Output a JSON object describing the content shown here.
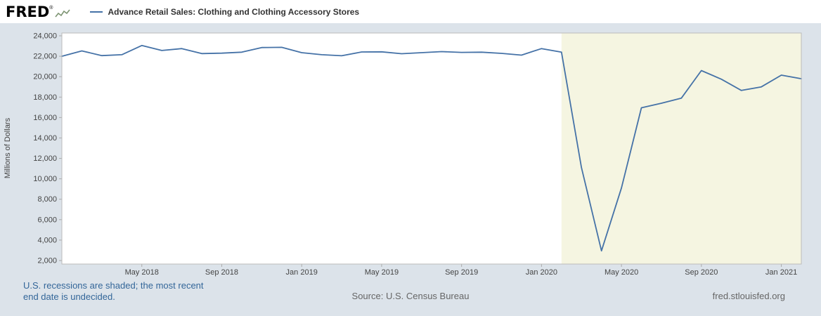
{
  "header": {
    "logo_text": "FRED",
    "logo_registered": "®",
    "legend_label": "Advance Retail Sales: Clothing and Clothing Accessory Stores"
  },
  "footer": {
    "recession_note_line1": "U.S. recessions are shaded; the most recent",
    "recession_note_line2": "end date is undecided.",
    "source": "Source: U.S. Census Bureau",
    "site": "fred.stlouisfed.org"
  },
  "chart_data": {
    "type": "line",
    "title": "Advance Retail Sales: Clothing and Clothing Accessory Stores",
    "xlabel": "",
    "ylabel": "Millions of Dollars",
    "ylim": [
      2000,
      24000
    ],
    "y_ticks": [
      2000,
      4000,
      6000,
      8000,
      10000,
      12000,
      14000,
      16000,
      18000,
      20000,
      22000,
      24000
    ],
    "grid": false,
    "legend_position": "top-left-header",
    "line_color": "#4572a7",
    "recession_color": "#f5f5e1",
    "plot_background": "#ffffff",
    "page_background": "#dce3ea",
    "x": [
      "2018-01",
      "2018-02",
      "2018-03",
      "2018-04",
      "2018-05",
      "2018-06",
      "2018-07",
      "2018-08",
      "2018-09",
      "2018-10",
      "2018-11",
      "2018-12",
      "2019-01",
      "2019-02",
      "2019-03",
      "2019-04",
      "2019-05",
      "2019-06",
      "2019-07",
      "2019-08",
      "2019-09",
      "2019-10",
      "2019-11",
      "2019-12",
      "2020-01",
      "2020-02",
      "2020-03",
      "2020-04",
      "2020-05",
      "2020-06",
      "2020-07",
      "2020-08",
      "2020-09",
      "2020-10",
      "2020-11",
      "2020-12",
      "2021-01",
      "2021-02"
    ],
    "values": [
      22000,
      22520,
      22060,
      22150,
      23050,
      22560,
      22750,
      22260,
      22300,
      22400,
      22850,
      22870,
      22350,
      22150,
      22050,
      22420,
      22430,
      22250,
      22350,
      22450,
      22380,
      22400,
      22280,
      22110,
      22750,
      22400,
      11100,
      2950,
      9100,
      16950,
      17400,
      17900,
      20600,
      19750,
      18650,
      19000,
      20150,
      19800
    ],
    "x_ticks": [
      {
        "i": 4,
        "label": "May 2018"
      },
      {
        "i": 8,
        "label": "Sep 2018"
      },
      {
        "i": 12,
        "label": "Jan 2019"
      },
      {
        "i": 16,
        "label": "May 2019"
      },
      {
        "i": 20,
        "label": "Sep 2019"
      },
      {
        "i": 24,
        "label": "Jan 2020"
      },
      {
        "i": 28,
        "label": "May 2020"
      },
      {
        "i": 32,
        "label": "Sep 2020"
      },
      {
        "i": 36,
        "label": "Jan 2021"
      }
    ],
    "recession_start_index": 25,
    "recession_end": "right-edge"
  }
}
